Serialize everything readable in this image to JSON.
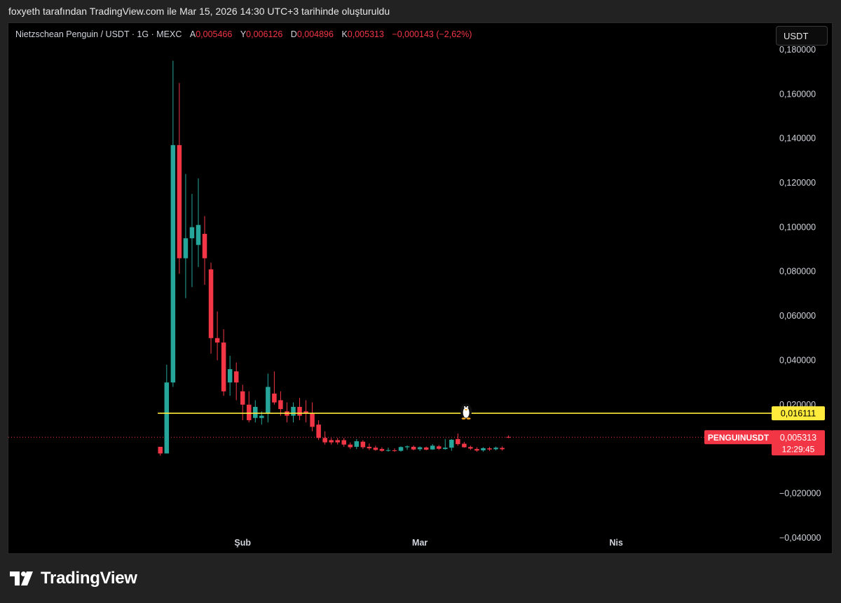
{
  "caption": "foxyeth tarafından TradingView.com ile Mar 15, 2026 14:30 UTC+3 tarihinde oluşturuldu",
  "legend": {
    "symbol": "Nietzschean Penguin / USDT · 1G · MEXC",
    "open_label": "A",
    "open": "0,005466",
    "high_label": "Y",
    "high": "0,006126",
    "low_label": "D",
    "low": "0,004896",
    "close_label": "K",
    "close": "0,005313",
    "change": "−0,000143 (−2,62%)"
  },
  "currency_button": "USDT",
  "brand": "TradingView",
  "colors": {
    "up": "#26a69a",
    "down": "#f23645",
    "line": "#ffeb3b",
    "background": "#000000"
  },
  "chart_data": {
    "type": "candlestick",
    "y_ticks": [
      0.18,
      0.16,
      0.14,
      0.12,
      0.1,
      0.08,
      0.06,
      0.04,
      0.02,
      -0.02,
      -0.04
    ],
    "y_tick_labels": [
      "0,180000",
      "0,160000",
      "0,140000",
      "0,120000",
      "0,100000",
      "0,080000",
      "0,060000",
      "0,040000",
      "0,020000",
      "−0,020000",
      "−0,040000"
    ],
    "ylim": [
      -0.047,
      0.192
    ],
    "x_labels": [
      {
        "label": "Şub",
        "day": 13
      },
      {
        "label": "Mar",
        "day": 41
      },
      {
        "label": "Nis",
        "day": 72
      }
    ],
    "xlim": [
      -24,
      97
    ],
    "horizontal_line": {
      "value": 0.016111,
      "label": "0,016111"
    },
    "last_price": {
      "symbol": "PENGUINUSDT",
      "value": 0.005313,
      "label": "0,005313",
      "countdown": "12:29:45"
    },
    "candles": [
      [
        0.0,
        0.001,
        0.0,
        -0.003,
        -0.002
      ],
      [
        1,
        -0.002,
        0.038,
        -0.002,
        0.03
      ],
      [
        2,
        0.03,
        0.175,
        0.028,
        0.137
      ],
      [
        3,
        0.137,
        0.165,
        0.079,
        0.086
      ],
      [
        4,
        0.086,
        0.124,
        0.068,
        0.095
      ],
      [
        5,
        0.095,
        0.115,
        0.073,
        0.1
      ],
      [
        6,
        0.092,
        0.122,
        0.082,
        0.101
      ],
      [
        7,
        0.097,
        0.105,
        0.074,
        0.086
      ],
      [
        8,
        0.081,
        0.084,
        0.043,
        0.05
      ],
      [
        9,
        0.05,
        0.062,
        0.04,
        0.048
      ],
      [
        10,
        0.048,
        0.054,
        0.024,
        0.026
      ],
      [
        11,
        0.03,
        0.042,
        0.024,
        0.036
      ],
      [
        12,
        0.035,
        0.039,
        0.022,
        0.03
      ],
      [
        13,
        0.026,
        0.029,
        0.013,
        0.02
      ],
      [
        14,
        0.02,
        0.026,
        0.012,
        0.013
      ],
      [
        15,
        0.014,
        0.022,
        0.012,
        0.019
      ],
      [
        16,
        0.014,
        0.017,
        0.011,
        0.015
      ],
      [
        17,
        0.016,
        0.034,
        0.012,
        0.028
      ],
      [
        18,
        0.025,
        0.035,
        0.02,
        0.021
      ],
      [
        19,
        0.022,
        0.026,
        0.015,
        0.018
      ],
      [
        20,
        0.017,
        0.021,
        0.012,
        0.015
      ],
      [
        21,
        0.015,
        0.021,
        0.012,
        0.019
      ],
      [
        22,
        0.019,
        0.023,
        0.013,
        0.015
      ],
      [
        23,
        0.017,
        0.022,
        0.012,
        0.016
      ],
      [
        24,
        0.016,
        0.021,
        0.008,
        0.01
      ],
      [
        25,
        0.011,
        0.013,
        0.004,
        0.005
      ],
      [
        26,
        0.005,
        0.008,
        0.002,
        0.003
      ],
      [
        27,
        0.004,
        0.005,
        0.002,
        0.003
      ],
      [
        28,
        0.004,
        0.005,
        0.002,
        0.003
      ],
      [
        29,
        0.004,
        0.005,
        0.001,
        0.002
      ],
      [
        30,
        0.002,
        0.003,
        0.0,
        0.0008
      ],
      [
        31,
        0.001,
        0.0045,
        0.0,
        0.0035
      ],
      [
        32,
        0.0033,
        0.004,
        0.0,
        0.0008
      ],
      [
        33,
        0.001,
        0.0025,
        -0.0005,
        0.0003
      ],
      [
        34,
        0.0006,
        0.0015,
        -0.0008,
        -0.0004
      ],
      [
        35,
        0.0,
        0.0008,
        -0.0012,
        -0.0008
      ],
      [
        36,
        -0.0006,
        0.0006,
        -0.0012,
        -0.0005
      ],
      [
        37,
        -0.0006,
        0.0003,
        -0.0013,
        -0.0009
      ],
      [
        38,
        -0.0008,
        0.0012,
        -0.0012,
        0.0009
      ],
      [
        39,
        0.0008,
        0.0016,
        -0.0004,
        0.0012
      ],
      [
        40,
        0.001,
        0.0016,
        -0.0006,
        -0.0002
      ],
      [
        41,
        -0.0001,
        0.0012,
        -0.0009,
        0.0008
      ],
      [
        42,
        0.0007,
        0.0011,
        -0.0006,
        -0.0003
      ],
      [
        43,
        -0.0002,
        0.0022,
        -0.0004,
        0.0015
      ],
      [
        44,
        0.0012,
        0.0018,
        -0.0004,
        0.0001
      ],
      [
        45,
        0.0,
        0.0045,
        -0.0003,
        0.0006
      ],
      [
        46,
        0.0006,
        0.0045,
        -0.0008,
        0.0042
      ],
      [
        47,
        0.0045,
        0.007,
        0.0015,
        0.0022
      ],
      [
        48,
        0.0024,
        0.0032,
        0.0006,
        0.0008
      ],
      [
        49,
        0.0009,
        0.0015,
        -0.0004,
        0.0002
      ],
      [
        50,
        0.0,
        0.0008,
        -0.0012,
        -0.0007
      ],
      [
        51,
        -0.0006,
        0.0008,
        -0.0012,
        0.0004
      ],
      [
        52,
        0.0003,
        0.0009,
        -0.0008,
        -0.0002
      ],
      [
        53,
        -0.0001,
        0.0011,
        -0.0006,
        0.0006
      ],
      [
        54,
        0.0005,
        0.0012,
        -0.0007,
        -0.0001
      ],
      [
        55,
        0.005466,
        0.006126,
        0.004896,
        0.005313
      ]
    ]
  }
}
